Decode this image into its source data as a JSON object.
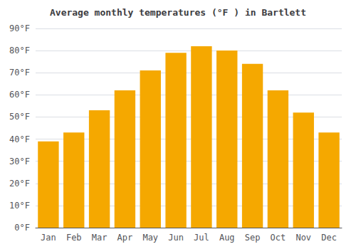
{
  "chart_data": {
    "type": "bar",
    "title": "Average monthly temperatures (°F ) in Bartlett",
    "categories": [
      "Jan",
      "Feb",
      "Mar",
      "Apr",
      "May",
      "Jun",
      "Jul",
      "Aug",
      "Sep",
      "Oct",
      "Nov",
      "Dec"
    ],
    "values": [
      39,
      43,
      53,
      62,
      71,
      79,
      82,
      80,
      74,
      62,
      52,
      43
    ],
    "color": "#F5A800",
    "ylim": [
      0,
      90
    ],
    "yticks": [
      {
        "value": 0,
        "label": "0°F"
      },
      {
        "value": 10,
        "label": "10°F"
      },
      {
        "value": 20,
        "label": "20°F"
      },
      {
        "value": 30,
        "label": "30°F"
      },
      {
        "value": 40,
        "label": "40°F"
      },
      {
        "value": 50,
        "label": "50°F"
      },
      {
        "value": 60,
        "label": "60°F"
      },
      {
        "value": 70,
        "label": "70°F"
      },
      {
        "value": 80,
        "label": "80°F"
      },
      {
        "value": 90,
        "label": "90°F"
      }
    ],
    "grid": true
  }
}
